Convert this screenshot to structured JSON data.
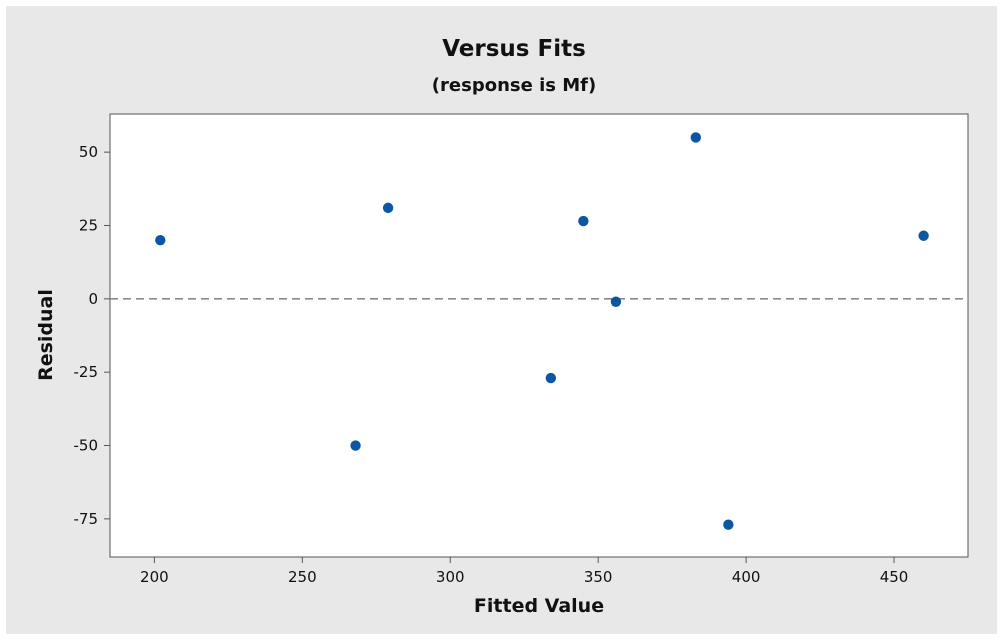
{
  "chart_data": {
    "type": "scatter",
    "title": "Versus Fits",
    "subtitle": "(response is Mf)",
    "xlabel": "Fitted Value",
    "ylabel": "Residual",
    "xlim": [
      185,
      475
    ],
    "ylim": [
      -88,
      63
    ],
    "x_ticks": [
      200,
      250,
      300,
      350,
      400,
      450
    ],
    "y_ticks": [
      50,
      25,
      0,
      -25,
      -50,
      -75
    ],
    "x_tick_labels": [
      "200",
      "250",
      "300",
      "350",
      "400",
      "450"
    ],
    "y_tick_labels": [
      "50",
      "25",
      "0",
      "-25",
      "-50",
      "-75"
    ],
    "reference_line": {
      "y": 0,
      "style": "dashed"
    },
    "grid": false,
    "points": [
      {
        "x": 202,
        "y": 20
      },
      {
        "x": 268,
        "y": -50
      },
      {
        "x": 279,
        "y": 31
      },
      {
        "x": 334,
        "y": -27
      },
      {
        "x": 345,
        "y": 26.5
      },
      {
        "x": 356,
        "y": -1
      },
      {
        "x": 383,
        "y": 55
      },
      {
        "x": 394,
        "y": -77
      },
      {
        "x": 460,
        "y": 21.5
      }
    ],
    "colors": {
      "background": "#e8e8e8",
      "plot_area": "#ffffff",
      "marker": "#0b57a4",
      "reference_line": "#8a8a8a",
      "axis": "#555555"
    }
  }
}
